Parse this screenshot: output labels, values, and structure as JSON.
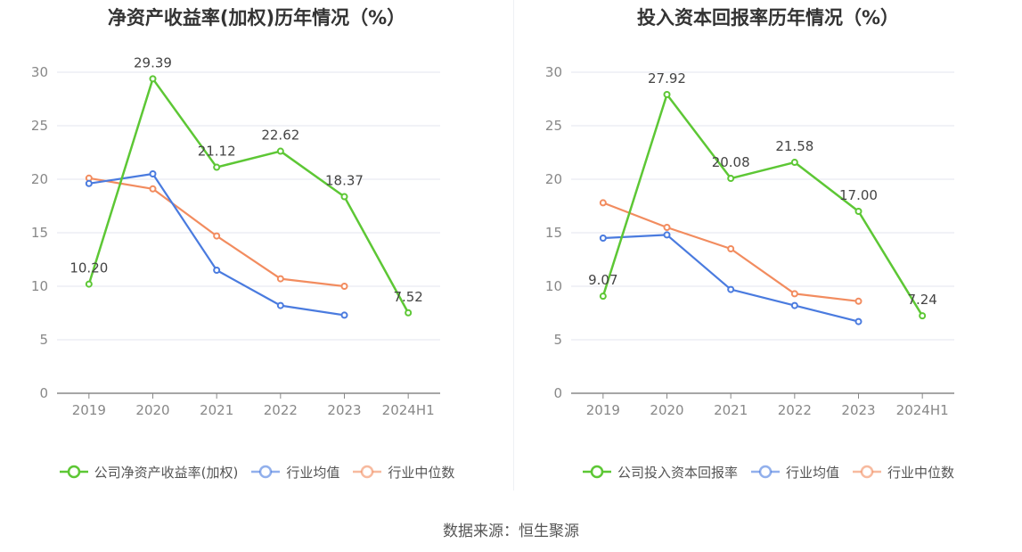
{
  "source": "数据来源：恒生聚源",
  "chart_data": [
    {
      "type": "line",
      "title": "净资产收益率(加权)历年情况（%）",
      "categories": [
        "2019",
        "2020",
        "2021",
        "2022",
        "2023",
        "2024H1"
      ],
      "ylim": [
        0,
        30
      ],
      "yticks": [
        0,
        5,
        10,
        15,
        20,
        25,
        30
      ],
      "grid": true,
      "legend_position": "bottom",
      "series": [
        {
          "name": "公司净资产收益率(加权)",
          "color": "#5dc735",
          "values": [
            10.2,
            29.39,
            21.12,
            22.62,
            18.37,
            7.52
          ],
          "labels": [
            "10.20",
            "29.39",
            "21.12",
            "22.62",
            "18.37",
            "7.52"
          ]
        },
        {
          "name": "行业均值",
          "color": "#4a7bdf",
          "values": [
            19.6,
            20.5,
            11.5,
            8.2,
            7.3,
            null
          ]
        },
        {
          "name": "行业中位数",
          "color": "#f28c5f",
          "values": [
            20.1,
            19.1,
            14.7,
            10.7,
            10.0,
            null
          ]
        }
      ]
    },
    {
      "type": "line",
      "title": "投入资本回报率历年情况（%）",
      "categories": [
        "2019",
        "2020",
        "2021",
        "2022",
        "2023",
        "2024H1"
      ],
      "ylim": [
        0,
        30
      ],
      "yticks": [
        0,
        5,
        10,
        15,
        20,
        25,
        30
      ],
      "grid": true,
      "legend_position": "bottom",
      "series": [
        {
          "name": "公司投入资本回报率",
          "color": "#5dc735",
          "values": [
            9.07,
            27.92,
            20.08,
            21.58,
            17.0,
            7.24
          ],
          "labels": [
            "9.07",
            "27.92",
            "20.08",
            "21.58",
            "17.00",
            "7.24"
          ]
        },
        {
          "name": "行业均值",
          "color": "#4a7bdf",
          "values": [
            14.5,
            14.8,
            9.7,
            8.2,
            6.7,
            null
          ]
        },
        {
          "name": "行业中位数",
          "color": "#f28c5f",
          "values": [
            17.8,
            15.5,
            13.5,
            9.3,
            8.6,
            null
          ]
        }
      ]
    }
  ]
}
